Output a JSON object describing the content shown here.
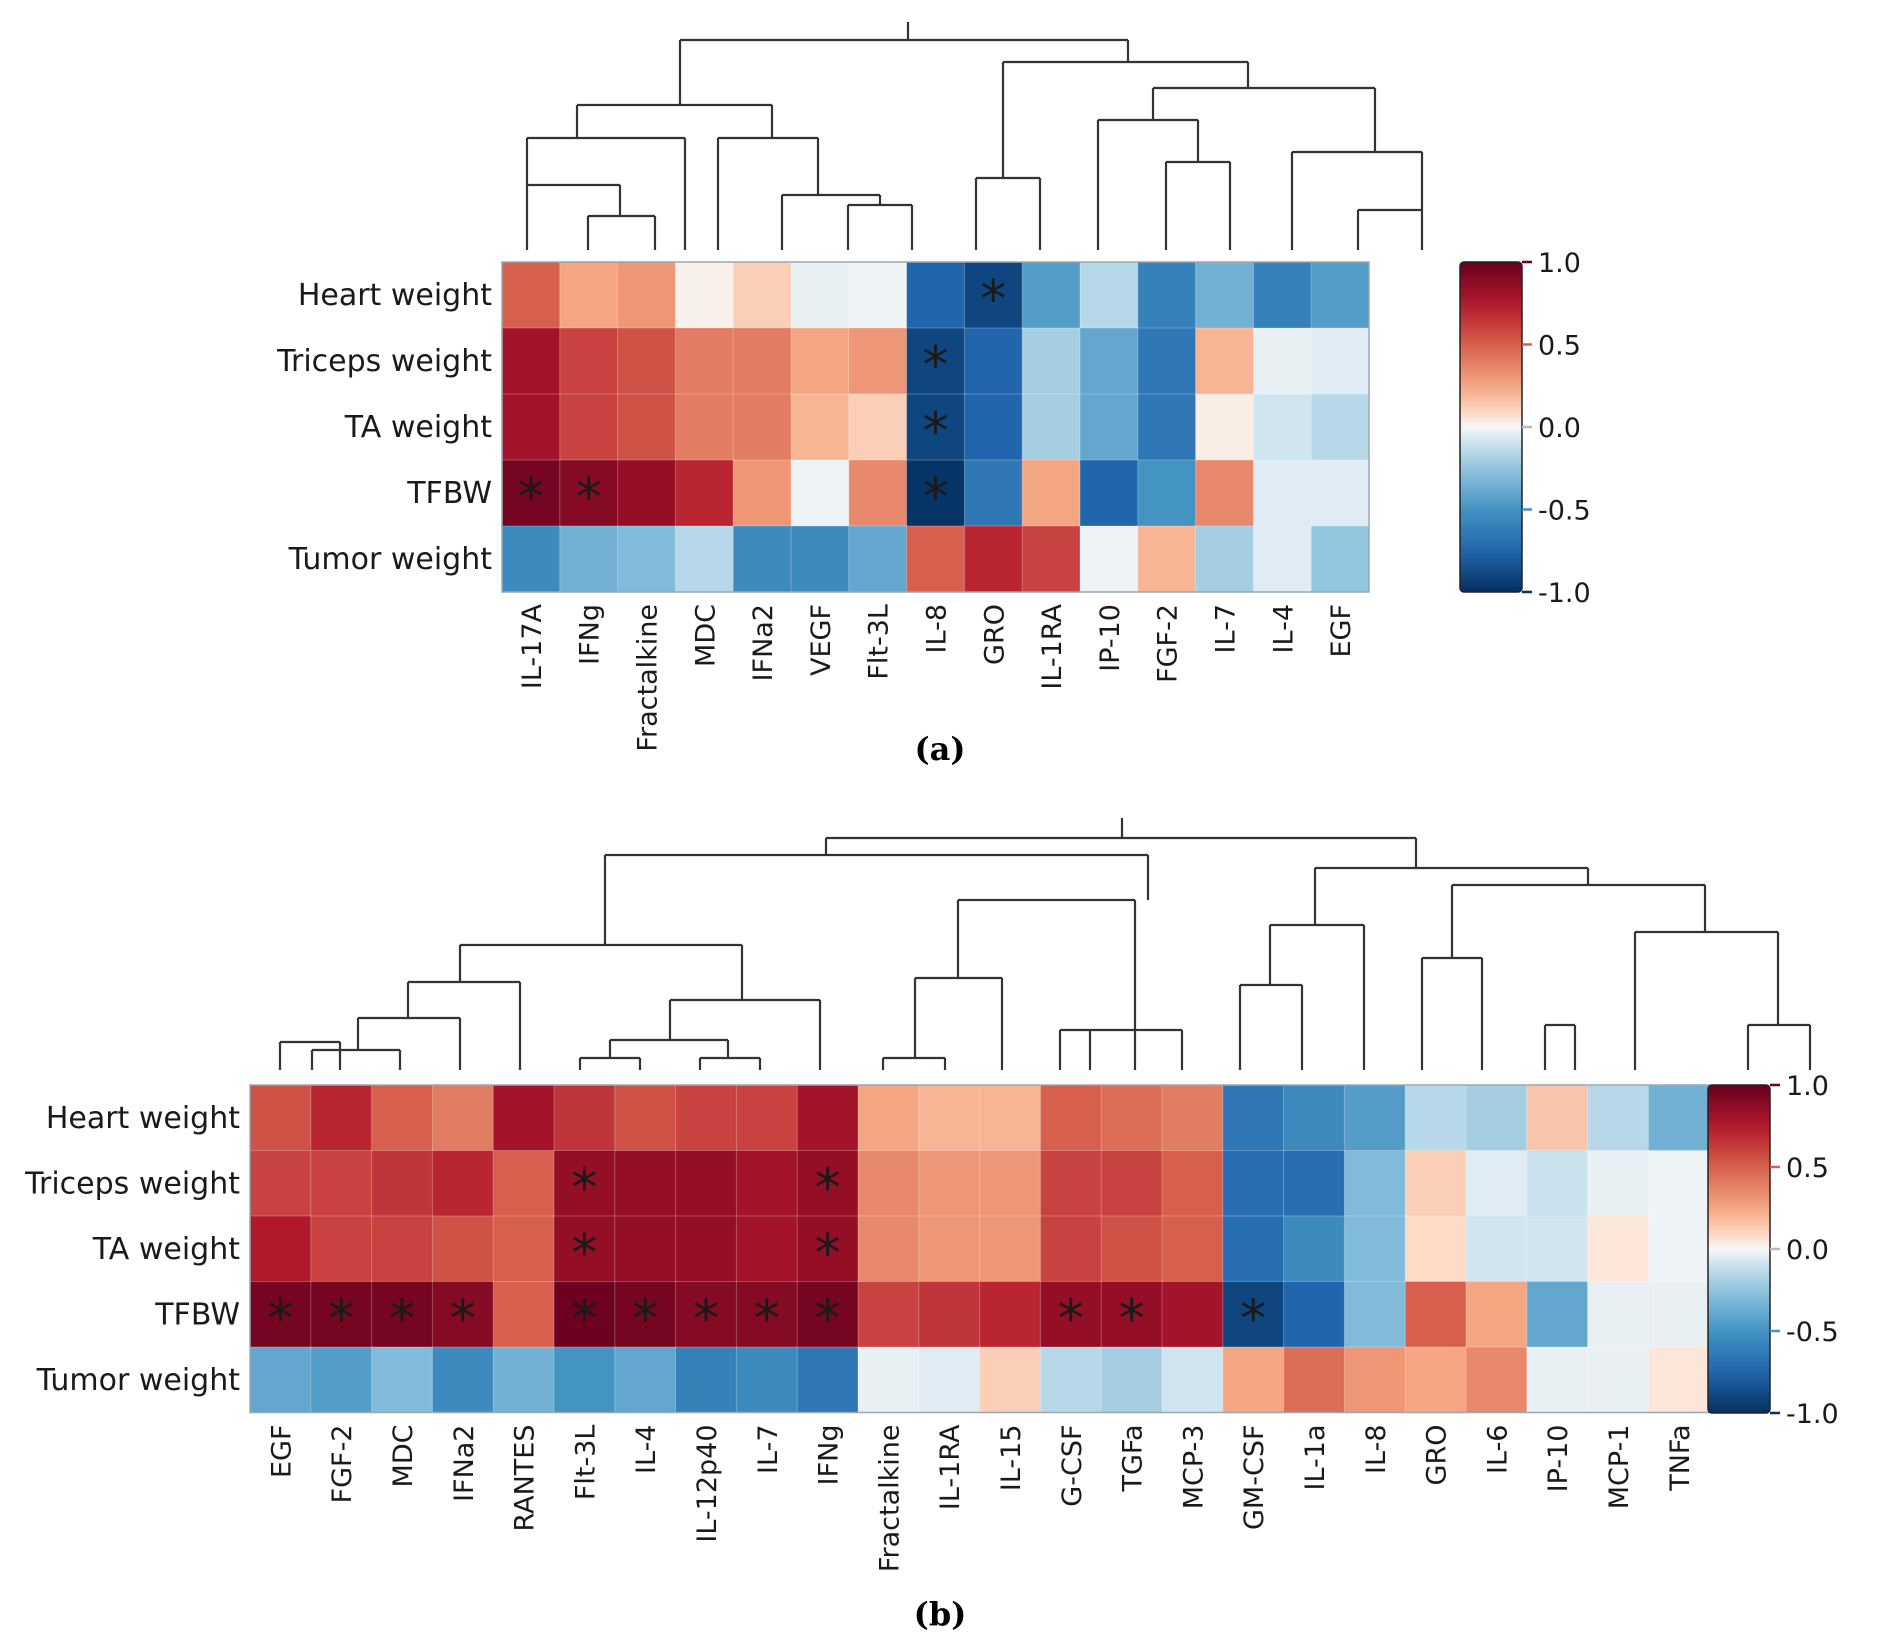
{
  "chart_data": [
    {
      "type": "heatmap",
      "panel_label": "(a)",
      "rows": [
        "Heart weight",
        "Triceps weight",
        "TA weight",
        "TFBW",
        "Tumor weight"
      ],
      "columns": [
        "IL-17A",
        "IFNg",
        "Fractalkine",
        "MDC",
        "IFNa2",
        "VEGF",
        "Flt-3L",
        "IL-8",
        "GRO",
        "IL-1RA",
        "IP-10",
        "FGF-2",
        "IL-7",
        "IL-4",
        "EGF"
      ],
      "values": [
        [
          0.5,
          0.25,
          0.3,
          0.02,
          0.12,
          -0.03,
          -0.02,
          -0.75,
          -0.9,
          -0.45,
          -0.15,
          -0.6,
          -0.35,
          -0.6,
          -0.45
        ],
        [
          0.8,
          0.6,
          0.55,
          0.4,
          0.4,
          0.25,
          0.3,
          -0.9,
          -0.75,
          -0.2,
          -0.4,
          -0.65,
          0.2,
          -0.03,
          -0.05
        ],
        [
          0.8,
          0.6,
          0.55,
          0.4,
          0.4,
          0.2,
          0.12,
          -0.9,
          -0.75,
          -0.2,
          -0.4,
          -0.65,
          0.03,
          -0.08,
          -0.15
        ],
        [
          0.95,
          0.9,
          0.85,
          0.7,
          0.3,
          -0.02,
          0.35,
          -0.98,
          -0.65,
          0.25,
          -0.75,
          -0.5,
          0.35,
          -0.05,
          -0.05
        ],
        [
          -0.55,
          -0.35,
          -0.3,
          -0.15,
          -0.55,
          -0.55,
          -0.4,
          0.5,
          0.7,
          0.6,
          -0.02,
          0.2,
          -0.2,
          -0.05,
          -0.25
        ]
      ],
      "significant": [
        [
          0,
          8
        ],
        [
          1,
          7
        ],
        [
          2,
          7
        ],
        [
          3,
          0
        ],
        [
          3,
          1
        ],
        [
          3,
          7
        ]
      ],
      "significance_marker": "*",
      "colorbar": {
        "min": -1.0,
        "max": 1.0,
        "ticks": [
          "1.0",
          "0.5",
          "0.0",
          "-0.5",
          "-1.0"
        ],
        "tick_values": [
          1.0,
          0.5,
          0.0,
          -0.5,
          -1.0
        ]
      },
      "colors": {
        "negative": "#053061",
        "mid": "#f7f7f7",
        "positive": "#67001f"
      },
      "dendrogram": {
        "position": "top",
        "leaf_order": [
          "IL-17A",
          "IFNg",
          "Fractalkine",
          "MDC",
          "IFNa2",
          "VEGF",
          "Flt-3L",
          "IL-8",
          "GRO",
          "IL-1RA",
          "IP-10",
          "FGF-2",
          "IL-7",
          "IL-4",
          "EGF"
        ]
      }
    },
    {
      "type": "heatmap",
      "panel_label": "(b)",
      "rows": [
        "Heart weight",
        "Triceps weight",
        "TA weight",
        "TFBW",
        "Tumor weight"
      ],
      "columns": [
        "EGF",
        "FGF-2",
        "MDC",
        "IFNa2",
        "RANTES",
        "Flt-3L",
        "IL-4",
        "IL-12p40",
        "IL-7",
        "IFNg",
        "Fractalkine",
        "IL-1RA",
        "IL-15",
        "G-CSF",
        "TGFa",
        "MCP-3",
        "GM-CSF",
        "IL-1a",
        "IL-8",
        "GRO",
        "IL-6",
        "IP-10",
        "MCP-1",
        "TNFa"
      ],
      "values": [
        [
          0.55,
          0.7,
          0.5,
          0.4,
          0.8,
          0.65,
          0.55,
          0.6,
          0.6,
          0.8,
          0.25,
          0.2,
          0.2,
          0.5,
          0.45,
          0.4,
          -0.65,
          -0.55,
          -0.45,
          -0.15,
          -0.2,
          0.15,
          -0.15,
          -0.35
        ],
        [
          0.6,
          0.6,
          0.65,
          0.7,
          0.5,
          0.85,
          0.85,
          0.85,
          0.8,
          0.85,
          0.35,
          0.3,
          0.3,
          0.6,
          0.6,
          0.5,
          -0.7,
          -0.7,
          -0.3,
          0.12,
          -0.05,
          -0.1,
          -0.03,
          -0.02
        ],
        [
          0.75,
          0.6,
          0.6,
          0.55,
          0.5,
          0.85,
          0.85,
          0.85,
          0.8,
          0.85,
          0.35,
          0.3,
          0.3,
          0.6,
          0.55,
          0.5,
          -0.7,
          -0.55,
          -0.3,
          0.08,
          -0.08,
          -0.08,
          0.05,
          -0.02
        ],
        [
          0.95,
          0.95,
          0.95,
          0.9,
          0.5,
          0.98,
          0.95,
          0.9,
          0.9,
          0.95,
          0.6,
          0.65,
          0.7,
          0.85,
          0.85,
          0.8,
          -0.9,
          -0.75,
          -0.3,
          0.5,
          0.25,
          -0.4,
          -0.03,
          -0.03
        ],
        [
          -0.4,
          -0.45,
          -0.3,
          -0.55,
          -0.35,
          -0.5,
          -0.4,
          -0.6,
          -0.55,
          -0.65,
          -0.03,
          -0.05,
          0.12,
          -0.15,
          -0.2,
          -0.08,
          0.25,
          0.45,
          0.3,
          0.25,
          0.35,
          -0.03,
          -0.03,
          0.05
        ]
      ],
      "significant": [
        [
          1,
          5
        ],
        [
          1,
          9
        ],
        [
          2,
          5
        ],
        [
          2,
          9
        ],
        [
          3,
          0
        ],
        [
          3,
          1
        ],
        [
          3,
          2
        ],
        [
          3,
          3
        ],
        [
          3,
          5
        ],
        [
          3,
          6
        ],
        [
          3,
          7
        ],
        [
          3,
          8
        ],
        [
          3,
          9
        ],
        [
          3,
          13
        ],
        [
          3,
          14
        ],
        [
          3,
          16
        ]
      ],
      "significance_marker": "*",
      "colorbar": {
        "min": -1.0,
        "max": 1.0,
        "ticks": [
          "1.0",
          "0.5",
          "0.0",
          "-0.5",
          "-1.0"
        ],
        "tick_values": [
          1.0,
          0.5,
          0.0,
          -0.5,
          -1.0
        ]
      },
      "colors": {
        "negative": "#053061",
        "mid": "#f7f7f7",
        "positive": "#67001f"
      },
      "dendrogram": {
        "position": "top",
        "leaf_order": [
          "EGF",
          "FGF-2",
          "MDC",
          "IFNa2",
          "RANTES",
          "Flt-3L",
          "IL-4",
          "IL-12p40",
          "IL-7",
          "IFNg",
          "Fractalkine",
          "IL-1RA",
          "IL-15",
          "G-CSF",
          "TGFa",
          "MCP-3",
          "GM-CSF",
          "IL-1a",
          "IL-8",
          "GRO",
          "IL-6",
          "IP-10",
          "MCP-1",
          "TNFa"
        ]
      }
    }
  ]
}
